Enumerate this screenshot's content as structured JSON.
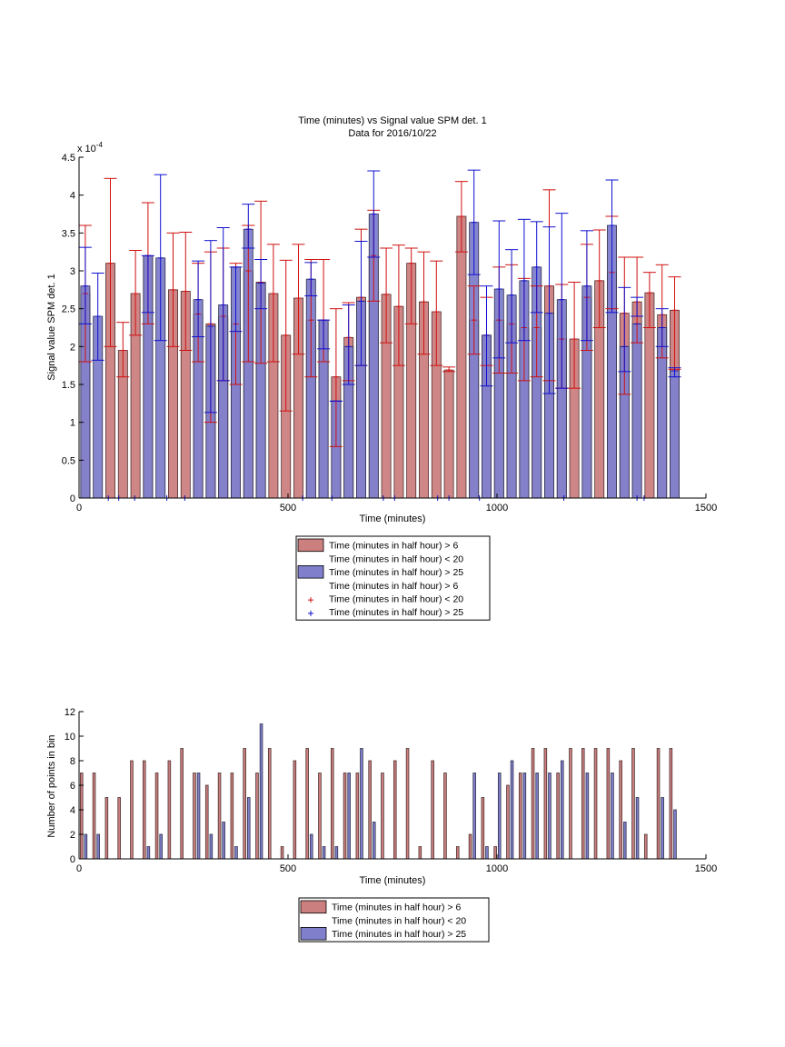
{
  "chart_data": [
    {
      "type": "bar",
      "title": "Time (minutes) vs Signal value SPM det. 1",
      "subtitle": "Data for 2016/10/22",
      "xlabel": "Time (minutes)",
      "ylabel": "Signal value SPM det. 1",
      "y_exponent_label": "x 10",
      "y_exponent_power": "-4",
      "xlim": [
        0,
        1500
      ],
      "ylim": [
        0,
        4.5
      ],
      "x_ticks": [
        0,
        500,
        1000,
        1500
      ],
      "y_ticks": [
        0,
        0.5,
        1,
        1.5,
        2,
        2.5,
        3,
        3.5,
        4,
        4.5
      ],
      "bar_width": 25,
      "legend_location": "below plot",
      "legend_entries": [
        "Time (minutes in half hour) > 6",
        "Time (minutes in half hour) < 20",
        "Time (minutes in half hour) > 25",
        "Time (minutes in half hour) > 6",
        "Time (minutes in half hour) < 20",
        "Time (minutes in half hour) > 25"
      ],
      "series": [
        {
          "color": "#cc7f7f",
          "edge": "#4d3030",
          "err_color": "#d01010",
          "x": [
            15,
            75,
            105,
            135,
            165,
            225,
            255,
            285,
            315,
            345,
            375,
            405,
            435,
            465,
            495,
            525,
            555,
            585,
            615,
            645,
            675,
            705,
            735,
            765,
            795,
            825,
            855,
            885,
            915,
            945,
            975,
            1005,
            1035,
            1065,
            1095,
            1125,
            1155,
            1185,
            1215,
            1245,
            1275,
            1305,
            1335,
            1365,
            1395,
            1425
          ],
          "values": [
            2.7,
            3.1,
            1.95,
            2.7,
            3.2,
            2.75,
            2.73,
            2.43,
            2.3,
            2.4,
            2.3,
            3.0,
            2.85,
            2.7,
            2.15,
            2.64,
            2.35,
            2.35,
            1.6,
            2.12,
            2.65,
            3.2,
            2.69,
            2.53,
            3.1,
            2.59,
            2.46,
            1.69,
            3.72,
            2.35,
            2.15,
            2.35,
            2.3,
            2.25,
            2.25,
            2.8,
            2.1,
            2.1,
            2.65,
            2.87,
            2.98,
            2.44,
            2.59,
            2.71,
            2.42,
            2.48
          ],
          "err_low": [
            1.8,
            2.0,
            1.6,
            2.15,
            2.3,
            2.0,
            1.95,
            1.8,
            1.0,
            1.55,
            1.5,
            1.8,
            1.78,
            1.8,
            1.15,
            1.9,
            1.6,
            1.8,
            0.68,
            1.55,
            1.75,
            2.6,
            2.05,
            1.75,
            2.3,
            1.9,
            1.75,
            1.67,
            3.25,
            1.9,
            1.75,
            1.65,
            1.65,
            1.55,
            1.6,
            1.55,
            1.45,
            1.45,
            1.95,
            2.25,
            2.5,
            1.37,
            2.05,
            2.25,
            1.85,
            1.7
          ],
          "err_high": [
            3.6,
            4.22,
            2.32,
            3.27,
            3.9,
            3.5,
            3.51,
            3.1,
            3.25,
            3.3,
            3.1,
            3.6,
            3.92,
            3.35,
            3.14,
            3.35,
            3.15,
            3.15,
            2.5,
            2.58,
            3.55,
            3.8,
            3.3,
            3.34,
            3.3,
            3.25,
            3.13,
            1.73,
            4.18,
            2.8,
            2.65,
            3.05,
            3.08,
            2.9,
            2.8,
            4.07,
            2.82,
            2.85,
            3.35,
            3.54,
            3.72,
            3.18,
            3.18,
            2.98,
            3.08,
            2.92
          ]
        },
        {
          "color": "#7f7fcc",
          "edge": "#30304d",
          "err_color": "#1010d0",
          "x": [
            15,
            45,
            165,
            195,
            285,
            315,
            345,
            375,
            405,
            435,
            555,
            585,
            615,
            645,
            675,
            705,
            945,
            975,
            1005,
            1035,
            1065,
            1095,
            1125,
            1155,
            1215,
            1275,
            1305,
            1335,
            1395,
            1425
          ],
          "values": [
            2.8,
            2.4,
            3.2,
            3.17,
            2.62,
            2.27,
            2.55,
            3.05,
            3.55,
            2.84,
            2.89,
            2.35,
            1.28,
            2.0,
            2.6,
            3.75,
            3.64,
            2.15,
            2.76,
            2.68,
            2.87,
            3.05,
            2.44,
            2.62,
            2.8,
            3.6,
            2.0,
            2.3,
            2.25,
            1.68
          ],
          "err_low": [
            2.3,
            1.82,
            2.45,
            2.08,
            2.13,
            1.13,
            1.55,
            2.2,
            3.3,
            2.5,
            2.67,
            1.97,
            1.28,
            1.5,
            1.75,
            3.18,
            2.95,
            1.48,
            1.85,
            2.05,
            2.08,
            2.45,
            1.38,
            1.45,
            2.08,
            2.45,
            1.67,
            2.65,
            2.0,
            1.6
          ],
          "err_high": [
            3.31,
            2.97,
            3.2,
            4.27,
            3.13,
            3.4,
            3.57,
            3.05,
            3.88,
            3.15,
            3.11,
            2.35,
            1.28,
            2.55,
            3.39,
            4.32,
            4.33,
            2.8,
            3.66,
            3.28,
            3.68,
            3.65,
            3.58,
            3.76,
            3.53,
            4.2,
            2.78,
            2.4,
            2.5,
            1.72
          ]
        }
      ],
      "x_tick_marks_blue": [
        70,
        95,
        133,
        210,
        253,
        535,
        605,
        728,
        755,
        858,
        885,
        958,
        1160,
        1335,
        1352
      ],
      "x_tick_marks_red": []
    },
    {
      "type": "bar",
      "xlabel": "Time (minutes)",
      "ylabel": "Number of points in bin",
      "xlim": [
        0,
        1500
      ],
      "ylim": [
        0,
        12
      ],
      "x_ticks": [
        0,
        500,
        1000,
        1500
      ],
      "y_ticks": [
        0,
        2,
        4,
        6,
        8,
        10,
        12
      ],
      "bar_width": 10,
      "legend_location": "below plot",
      "legend_entries": [
        "Time (minutes in half hour) > 6",
        "Time (minutes in half hour) < 20",
        "Time (minutes in half hour) > 25"
      ],
      "series": [
        {
          "color": "#cc7f7f",
          "edge": "#4d3030",
          "x": [
            6,
            36,
            66,
            96,
            126,
            156,
            186,
            216,
            246,
            276,
            306,
            336,
            366,
            396,
            426,
            456,
            486,
            516,
            546,
            576,
            606,
            636,
            666,
            696,
            726,
            756,
            786,
            816,
            846,
            876,
            906,
            936,
            966,
            996,
            1026,
            1056,
            1086,
            1116,
            1146,
            1176,
            1206,
            1236,
            1266,
            1296,
            1326,
            1356,
            1386,
            1416
          ],
          "values": [
            7,
            7,
            5,
            5,
            8,
            8,
            7,
            8,
            9,
            7,
            6,
            7,
            7,
            9,
            7,
            9,
            1,
            8,
            9,
            7,
            9,
            7,
            7,
            8,
            7,
            8,
            9,
            1,
            8,
            7,
            1,
            2,
            5,
            1,
            6,
            7,
            9,
            9,
            7,
            9,
            9,
            9,
            9,
            8,
            9,
            2,
            9,
            9
          ]
        },
        {
          "color": "#7f7fcc",
          "edge": "#30304d",
          "x": [
            16,
            46,
            166,
            196,
            286,
            316,
            346,
            376,
            406,
            436,
            556,
            586,
            616,
            646,
            676,
            706,
            946,
            976,
            1006,
            1036,
            1066,
            1096,
            1126,
            1156,
            1216,
            1276,
            1306,
            1336,
            1396,
            1426
          ],
          "values": [
            2,
            2,
            1,
            2,
            7,
            2,
            3,
            1,
            5,
            11,
            2,
            1,
            1,
            7,
            9,
            3,
            7,
            1,
            7,
            8,
            7,
            7,
            7,
            8,
            7,
            7,
            3,
            5,
            5,
            4
          ]
        }
      ]
    }
  ]
}
